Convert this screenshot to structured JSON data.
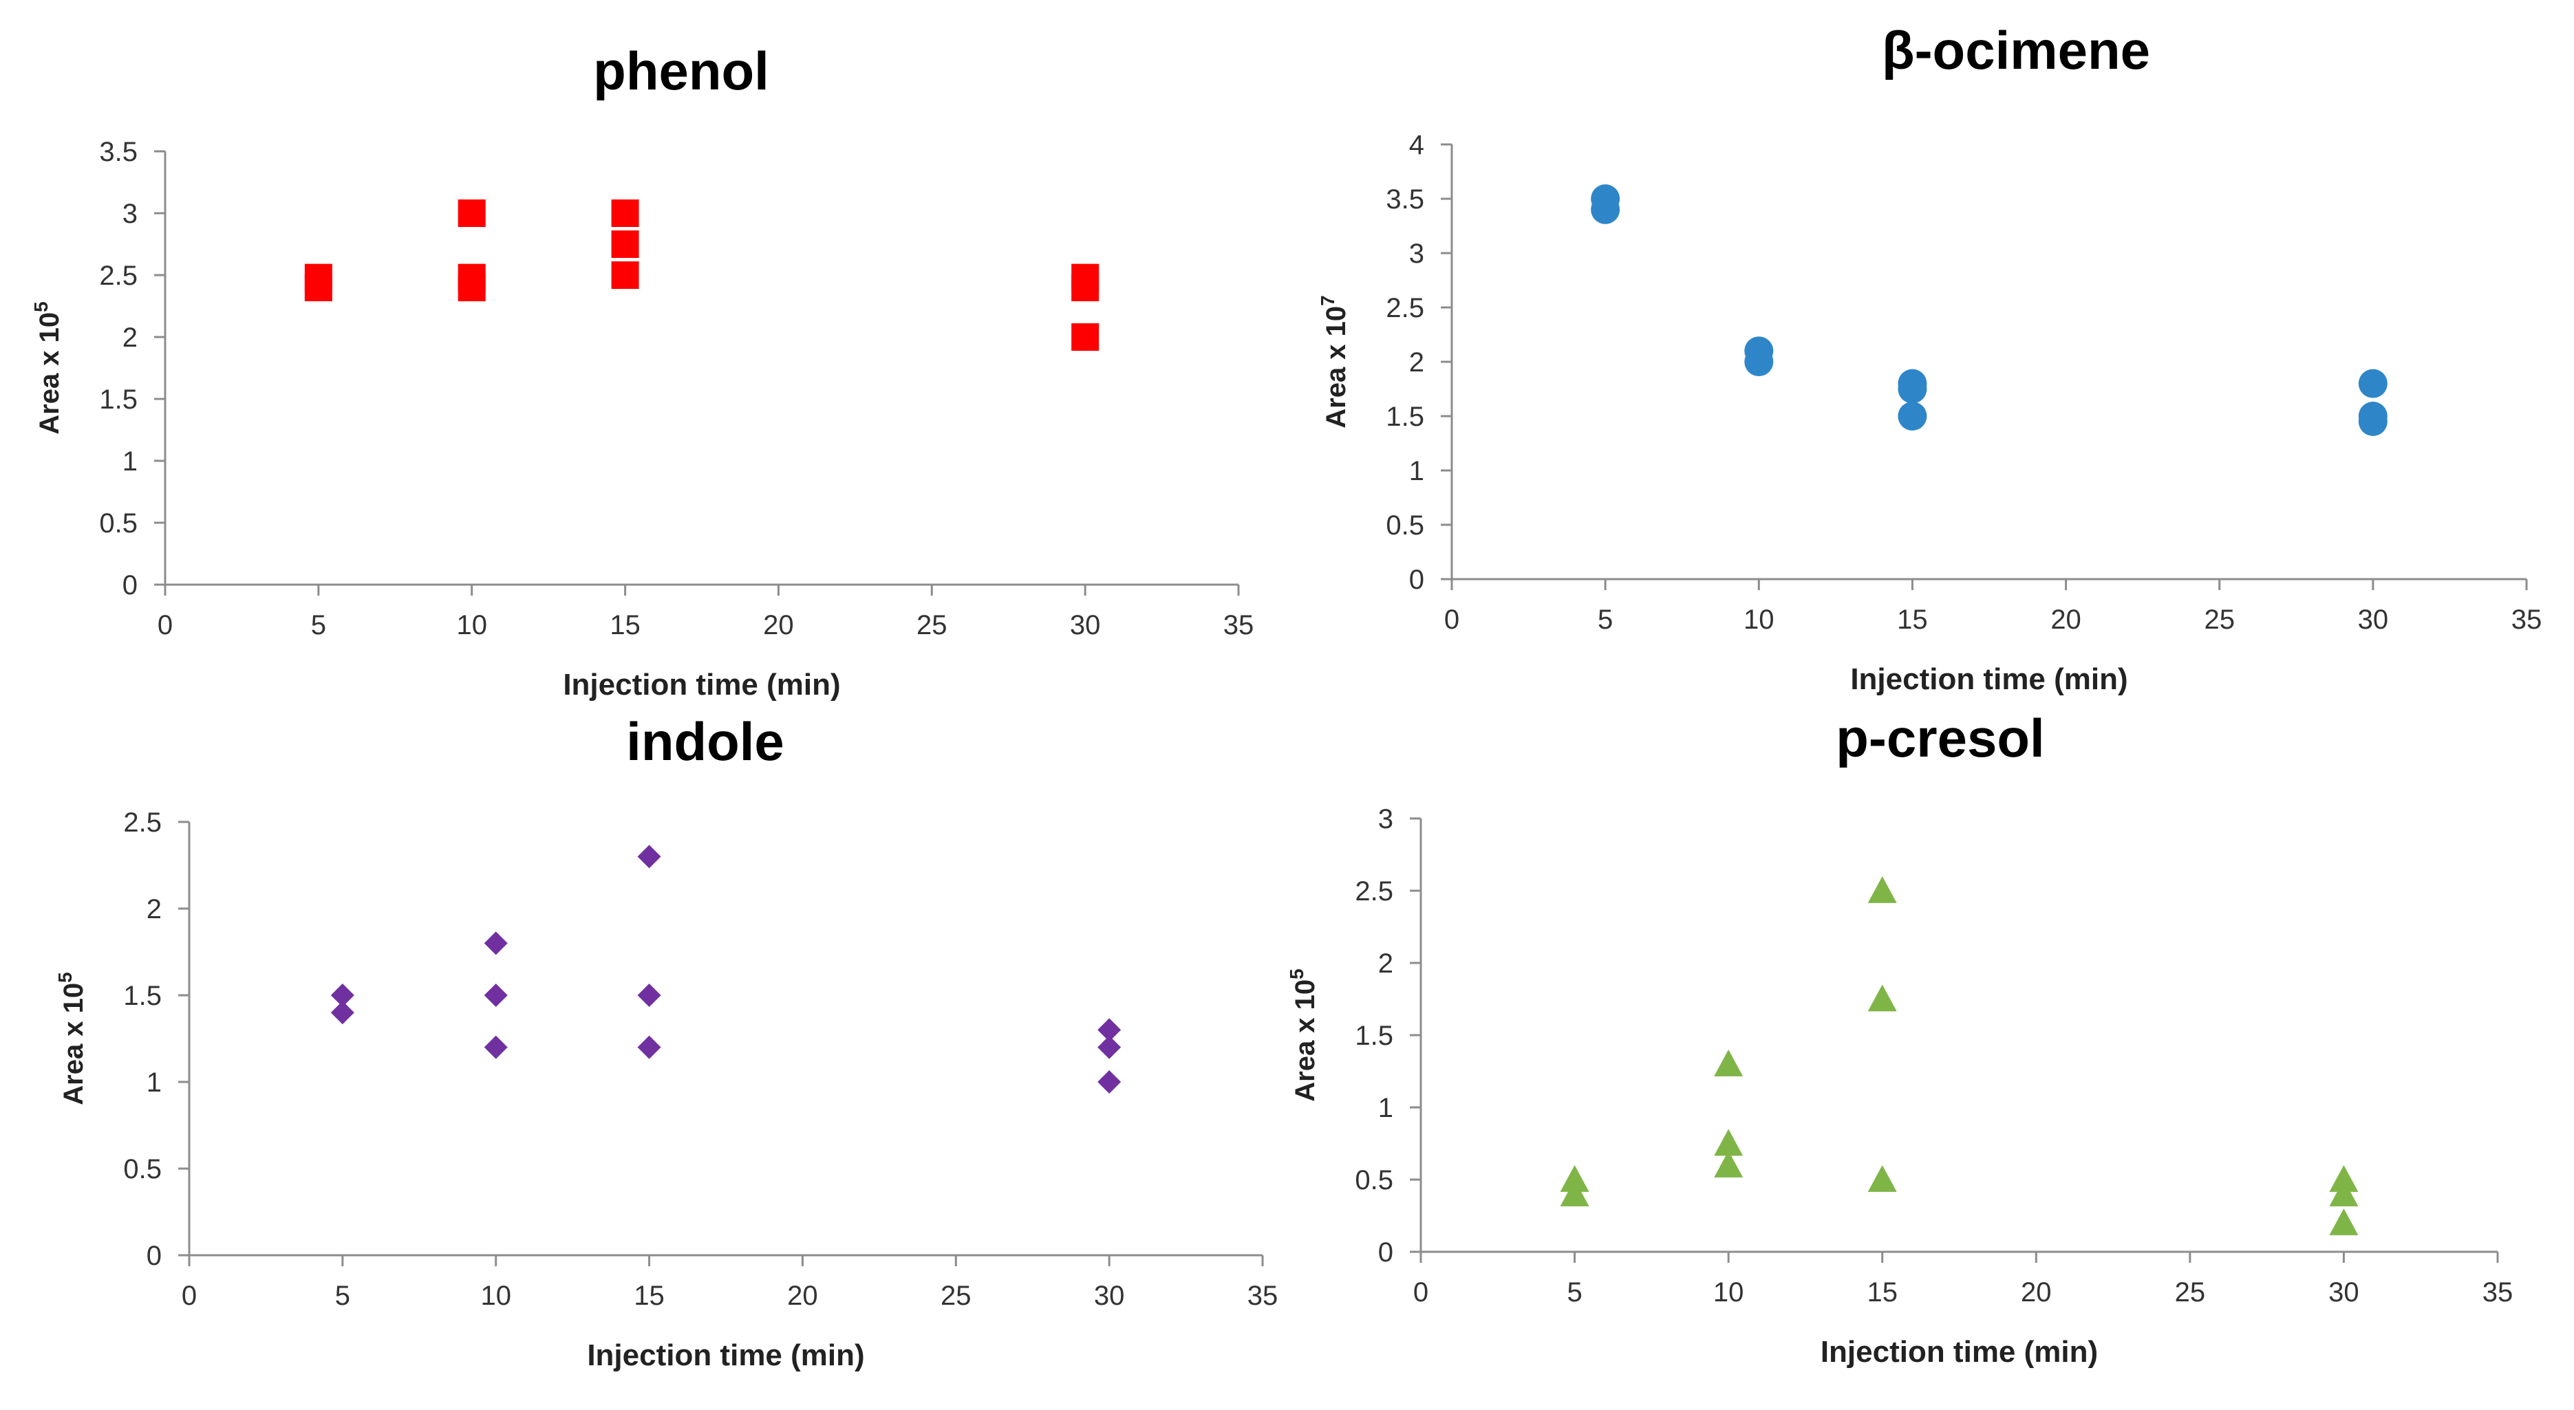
{
  "chart_data": [
    {
      "type": "scatter",
      "title": "phenol",
      "xlabel": "Injection time (min)",
      "ylabel": "Area x 10",
      "ylabel_exponent": "5",
      "xlim": [
        0,
        35
      ],
      "ylim": [
        0,
        3.5
      ],
      "x_ticks": [
        "0",
        "5",
        "10",
        "15",
        "20",
        "25",
        "30",
        "35"
      ],
      "y_ticks": [
        "0",
        "0.5",
        "1",
        "1.5",
        "2",
        "2.5",
        "3",
        "3.5"
      ],
      "grid": false,
      "marker": "square",
      "color": "#ff0000",
      "series": [
        {
          "x": [
            5,
            5,
            10,
            10,
            10,
            15,
            15,
            15,
            30,
            30,
            30
          ],
          "y": [
            2.4,
            2.48,
            3.0,
            2.4,
            2.48,
            3.0,
            2.75,
            2.5,
            2.4,
            2.48,
            2.0
          ]
        }
      ]
    },
    {
      "type": "scatter",
      "title": "β-ocimene",
      "xlabel": "Injection time (min)",
      "ylabel": "Area x 10",
      "ylabel_exponent": "7",
      "xlim": [
        0,
        35
      ],
      "ylim": [
        0,
        4
      ],
      "x_ticks": [
        "0",
        "5",
        "10",
        "15",
        "20",
        "25",
        "30",
        "35"
      ],
      "y_ticks": [
        "0",
        "0.5",
        "1",
        "1.5",
        "2",
        "2.5",
        "3",
        "3.5",
        "4"
      ],
      "grid": false,
      "marker": "circle",
      "color": "#2e86c8",
      "series": [
        {
          "x": [
            5,
            5,
            10,
            10,
            15,
            15,
            15,
            30,
            30,
            30
          ],
          "y": [
            3.4,
            3.5,
            2.0,
            2.1,
            1.75,
            1.8,
            1.5,
            1.8,
            1.45,
            1.5
          ]
        }
      ]
    },
    {
      "type": "scatter",
      "title": "indole",
      "xlabel": "Injection time (min)",
      "ylabel": "Area x 10",
      "ylabel_exponent": "5",
      "xlim": [
        0,
        35
      ],
      "ylim": [
        0,
        2.5
      ],
      "x_ticks": [
        "0",
        "5",
        "10",
        "15",
        "20",
        "25",
        "30",
        "35"
      ],
      "y_ticks": [
        "0",
        "0.5",
        "1",
        "1.5",
        "2",
        "2.5"
      ],
      "grid": false,
      "marker": "diamond",
      "color": "#7030a0",
      "series": [
        {
          "x": [
            5,
            5,
            10,
            10,
            10,
            15,
            15,
            15,
            30,
            30,
            30
          ],
          "y": [
            1.5,
            1.4,
            1.8,
            1.5,
            1.2,
            2.3,
            1.5,
            1.2,
            1.3,
            1.2,
            1.0
          ]
        }
      ]
    },
    {
      "type": "scatter",
      "title": "p-cresol",
      "xlabel": "Injection time (min)",
      "ylabel": "Area x 10",
      "ylabel_exponent": "5",
      "xlim": [
        0,
        35
      ],
      "ylim": [
        0,
        3
      ],
      "x_ticks": [
        "0",
        "5",
        "10",
        "15",
        "20",
        "25",
        "30",
        "35"
      ],
      "y_ticks": [
        "0",
        "0.5",
        "1",
        "1.5",
        "2",
        "2.5",
        "3"
      ],
      "grid": false,
      "marker": "triangle",
      "color": "#7fb547",
      "series": [
        {
          "x": [
            5,
            5,
            10,
            10,
            10,
            15,
            15,
            15,
            30,
            30,
            30
          ],
          "y": [
            0.5,
            0.4,
            1.3,
            0.75,
            0.6,
            2.5,
            1.75,
            0.5,
            0.5,
            0.4,
            0.2
          ]
        }
      ]
    }
  ]
}
